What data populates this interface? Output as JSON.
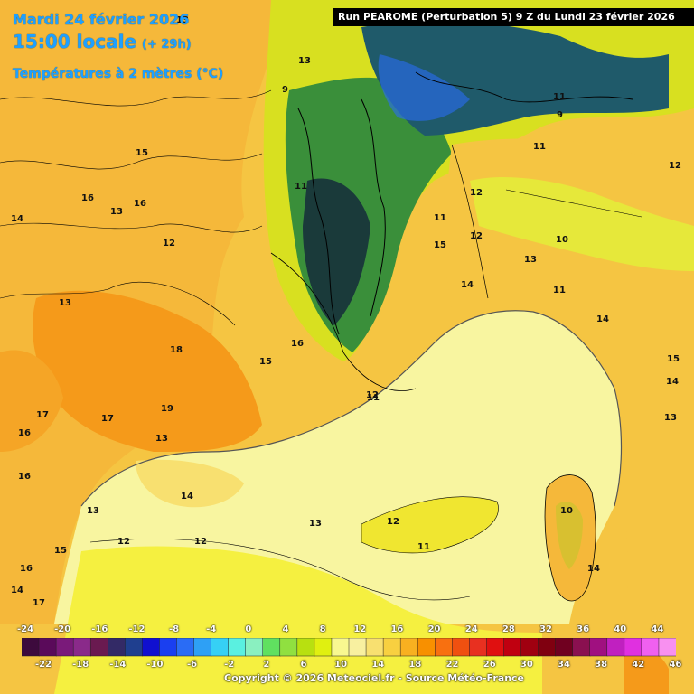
{
  "header": {
    "date": "Mardi 24 février 2026",
    "time": "15:00 locale",
    "lead": "(+ 29h)",
    "variable": "Températures à 2 mètres (°C)"
  },
  "run_info": "Run PEAROME (Perturbation 5) 9 Z du Lundi 23 février 2026",
  "legend": {
    "top_labels": [
      "-24",
      "-20",
      "-16",
      "-12",
      "-8",
      "-4",
      "0",
      "4",
      "8",
      "12",
      "16",
      "20",
      "24",
      "28",
      "32",
      "36",
      "40",
      "44"
    ],
    "bottom_labels": [
      "-22",
      "-18",
      "-14",
      "-10",
      "-6",
      "-2",
      "2",
      "6",
      "10",
      "14",
      "18",
      "22",
      "26",
      "30",
      "34",
      "38",
      "42",
      "46"
    ],
    "colors": [
      "#3d0a3d",
      "#5a0a5a",
      "#7a1a7a",
      "#8a2a8a",
      "#6a1a50",
      "#332a66",
      "#1f3f8f",
      "#1010d0",
      "#1a3ff0",
      "#2a6cf5",
      "#2ea0f5",
      "#36d0f5",
      "#5af0e0",
      "#8af0c0",
      "#60e060",
      "#90e040",
      "#b8e010",
      "#e0f010",
      "#f8f890",
      "#f8f0a0",
      "#f8e070",
      "#f8d040",
      "#f8b020",
      "#f89000",
      "#f87010",
      "#f05010",
      "#e83020",
      "#e01010",
      "#c00010",
      "#a00010",
      "#800010",
      "#700020",
      "#8a1050",
      "#a01080",
      "#c020c0",
      "#e030e0",
      "#f060f0",
      "#f890f0"
    ]
  },
  "copyright": "Copyright © 2026 Meteociel.fr - Source Météo-France",
  "map_labels": [
    "13",
    "15",
    "16",
    "13",
    "12",
    "13",
    "14",
    "16",
    "11",
    "14",
    "12",
    "13",
    "12",
    "14",
    "15",
    "16",
    "16",
    "17",
    "17",
    "16",
    "18",
    "19",
    "17",
    "13",
    "15",
    "14",
    "13",
    "12",
    "11",
    "12",
    "11",
    "11",
    "9",
    "13",
    "16",
    "15",
    "12",
    "13",
    "14",
    "14",
    "11",
    "10",
    "11",
    "12",
    "14",
    "13",
    "15",
    "10",
    "9",
    "11",
    "12"
  ]
}
